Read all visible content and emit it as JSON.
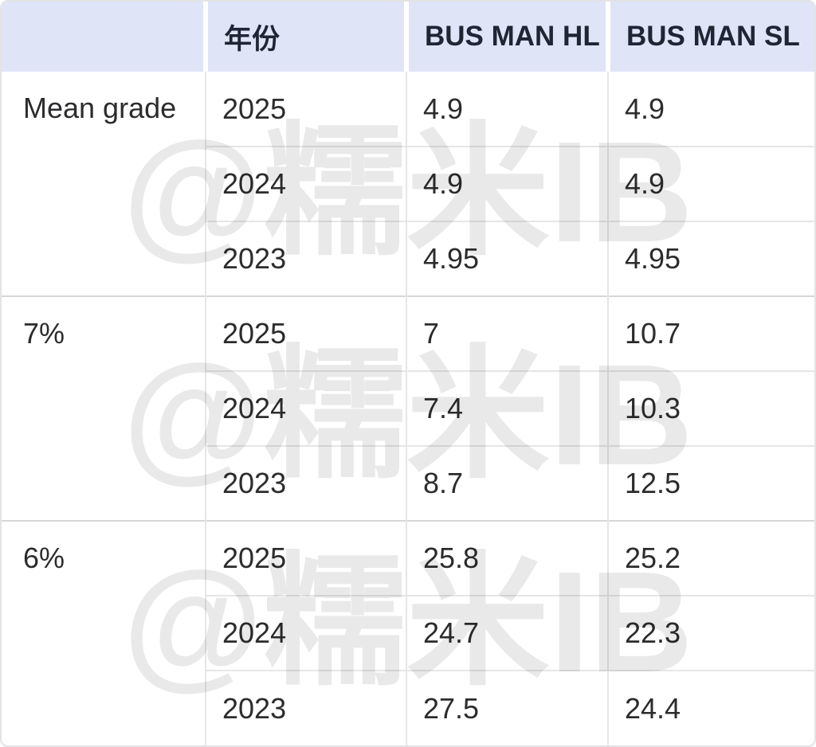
{
  "table": {
    "headers": {
      "col1": "",
      "year": "年份",
      "hl": "BUS MAN HL",
      "sl": "BUS MAN SL"
    },
    "groups": [
      {
        "label": "Mean grade",
        "rows": [
          {
            "year": "2025",
            "hl": "4.9",
            "sl": "4.9"
          },
          {
            "year": "2024",
            "hl": "4.9",
            "sl": "4.9"
          },
          {
            "year": "2023",
            "hl": "4.95",
            "sl": "4.95"
          }
        ]
      },
      {
        "label": "7%",
        "rows": [
          {
            "year": "2025",
            "hl": "7",
            "sl": "10.7"
          },
          {
            "year": "2024",
            "hl": "7.4",
            "sl": "10.3"
          },
          {
            "year": "2023",
            "hl": "8.7",
            "sl": "12.5"
          }
        ]
      },
      {
        "label": "6%",
        "rows": [
          {
            "year": "2025",
            "hl": "25.8",
            "sl": "25.2"
          },
          {
            "year": "2024",
            "hl": "24.7",
            "sl": "22.3"
          },
          {
            "year": "2023",
            "hl": "27.5",
            "sl": "24.4"
          }
        ]
      }
    ]
  },
  "watermark": {
    "text": "@糯米IB"
  },
  "colors": {
    "header_bg": "#dfe4f7",
    "header_text": "#1f2633",
    "body_text": "#2c2c2e",
    "row_divider": "#e6e6e8",
    "group_divider": "#d7d7da",
    "outer_border": "#e3e3e6",
    "watermark": "rgba(0,0,0,0.085)"
  },
  "chart_data": {
    "type": "table",
    "columns": [
      "",
      "年份",
      "BUS MAN HL",
      "BUS MAN SL"
    ],
    "row_groups": [
      {
        "metric": "Mean grade",
        "years": [
          "2025",
          "2024",
          "2023"
        ],
        "BUS_MAN_HL": [
          4.9,
          4.9,
          4.95
        ],
        "BUS_MAN_SL": [
          4.9,
          4.9,
          4.95
        ]
      },
      {
        "metric": "7%",
        "years": [
          "2025",
          "2024",
          "2023"
        ],
        "BUS_MAN_HL": [
          7,
          7.4,
          8.7
        ],
        "BUS_MAN_SL": [
          10.7,
          10.3,
          12.5
        ]
      },
      {
        "metric": "6%",
        "years": [
          "2025",
          "2024",
          "2023"
        ],
        "BUS_MAN_HL": [
          25.8,
          24.7,
          27.5
        ],
        "BUS_MAN_SL": [
          25.2,
          22.3,
          24.4
        ]
      }
    ]
  }
}
